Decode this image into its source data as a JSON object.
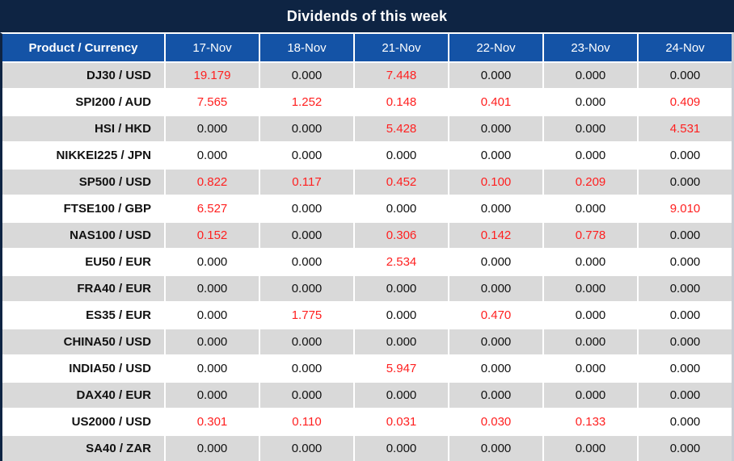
{
  "title": "Dividends of this week",
  "colors": {
    "title_bar": "#0e2443",
    "header_row": "#1453a6",
    "row_gray": "#d9d9d9",
    "row_white": "#ffffff",
    "nonzero_red": "#ff1f1f",
    "text": "#111111"
  },
  "table": {
    "header": [
      "Product / Currency",
      "17-Nov",
      "18-Nov",
      "21-Nov",
      "22-Nov",
      "23-Nov",
      "24-Nov"
    ],
    "rows": [
      {
        "product": "DJ30 / USD",
        "values": [
          "19.179",
          "0.000",
          "7.448",
          "0.000",
          "0.000",
          "0.000"
        ]
      },
      {
        "product": "SPI200 / AUD",
        "values": [
          "7.565",
          "1.252",
          "0.148",
          "0.401",
          "0.000",
          "0.409"
        ]
      },
      {
        "product": "HSI / HKD",
        "values": [
          "0.000",
          "0.000",
          "5.428",
          "0.000",
          "0.000",
          "4.531"
        ]
      },
      {
        "product": "NIKKEI225 / JPN",
        "values": [
          "0.000",
          "0.000",
          "0.000",
          "0.000",
          "0.000",
          "0.000"
        ]
      },
      {
        "product": "SP500 / USD",
        "values": [
          "0.822",
          "0.117",
          "0.452",
          "0.100",
          "0.209",
          "0.000"
        ]
      },
      {
        "product": "FTSE100 / GBP",
        "values": [
          "6.527",
          "0.000",
          "0.000",
          "0.000",
          "0.000",
          "9.010"
        ]
      },
      {
        "product": "NAS100 / USD",
        "values": [
          "0.152",
          "0.000",
          "0.306",
          "0.142",
          "0.778",
          "0.000"
        ]
      },
      {
        "product": "EU50 / EUR",
        "values": [
          "0.000",
          "0.000",
          "2.534",
          "0.000",
          "0.000",
          "0.000"
        ]
      },
      {
        "product": "FRA40 / EUR",
        "values": [
          "0.000",
          "0.000",
          "0.000",
          "0.000",
          "0.000",
          "0.000"
        ]
      },
      {
        "product": "ES35 / EUR",
        "values": [
          "0.000",
          "1.775",
          "0.000",
          "0.470",
          "0.000",
          "0.000"
        ]
      },
      {
        "product": "CHINA50 / USD",
        "values": [
          "0.000",
          "0.000",
          "0.000",
          "0.000",
          "0.000",
          "0.000"
        ]
      },
      {
        "product": "INDIA50 / USD",
        "values": [
          "0.000",
          "0.000",
          "5.947",
          "0.000",
          "0.000",
          "0.000"
        ]
      },
      {
        "product": "DAX40 / EUR",
        "values": [
          "0.000",
          "0.000",
          "0.000",
          "0.000",
          "0.000",
          "0.000"
        ]
      },
      {
        "product": "US2000 / USD",
        "values": [
          "0.301",
          "0.110",
          "0.031",
          "0.030",
          "0.133",
          "0.000"
        ]
      },
      {
        "product": "SA40 / ZAR",
        "values": [
          "0.000",
          "0.000",
          "0.000",
          "0.000",
          "0.000",
          "0.000"
        ]
      }
    ]
  }
}
